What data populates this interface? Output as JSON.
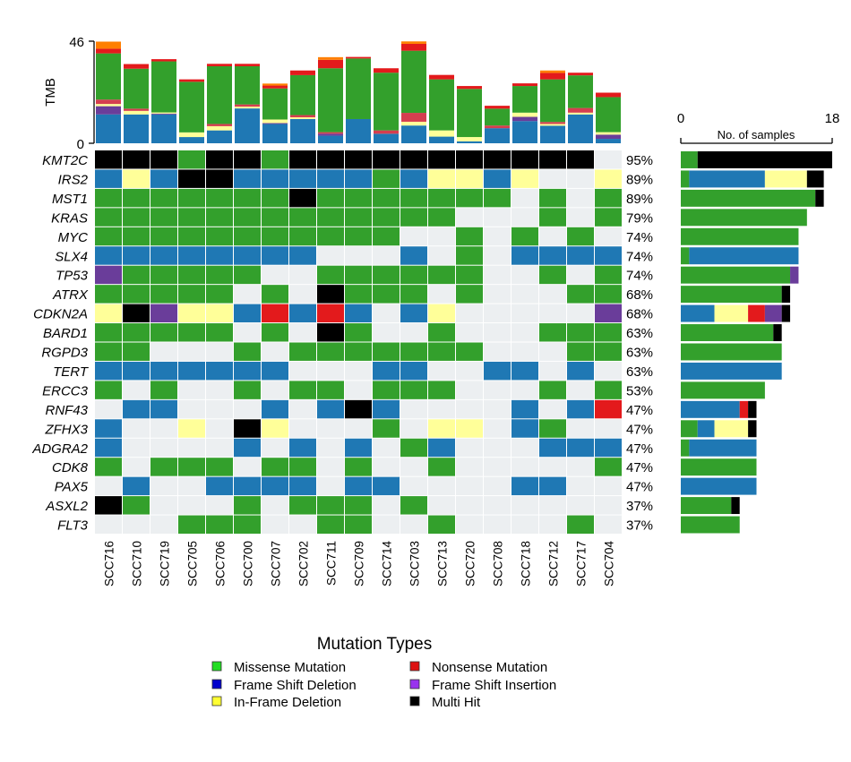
{
  "chart_data": {
    "type": "heatmap",
    "title": "",
    "samples": [
      "SCC716",
      "SCC710",
      "SCC719",
      "SCC705",
      "SCC706",
      "SCC700",
      "SCC707",
      "SCC702",
      "SCC711",
      "SCC709",
      "SCC714",
      "SCC703",
      "SCC713",
      "SCC720",
      "SCC708",
      "SCC718",
      "SCC712",
      "SCC717",
      "SCC704"
    ],
    "genes": [
      {
        "name": "KMT2C",
        "pct": "95%",
        "calls": [
          "H",
          "H",
          "H",
          "M",
          "H",
          "H",
          "M",
          "H",
          "H",
          "H",
          "H",
          "H",
          "H",
          "H",
          "H",
          "H",
          "H",
          "H",
          "."
        ]
      },
      {
        "name": "IRS2",
        "pct": "89%",
        "calls": [
          "D",
          "I",
          "D",
          "H",
          "H",
          "D",
          "D",
          "D",
          "D",
          "D",
          "M",
          "D",
          "I",
          "I",
          "D",
          "I",
          ".",
          ".",
          "I"
        ]
      },
      {
        "name": "MST1",
        "pct": "89%",
        "calls": [
          "M",
          "M",
          "M",
          "M",
          "M",
          "M",
          "M",
          "H",
          "M",
          "M",
          "M",
          "M",
          "M",
          "M",
          "M",
          ".",
          "M",
          ".",
          "M"
        ]
      },
      {
        "name": "KRAS",
        "pct": "79%",
        "calls": [
          "M",
          "M",
          "M",
          "M",
          "M",
          "M",
          "M",
          "M",
          "M",
          "M",
          "M",
          "M",
          "M",
          ".",
          ".",
          ".",
          "M",
          ".",
          "M"
        ]
      },
      {
        "name": "MYC",
        "pct": "74%",
        "calls": [
          "M",
          "M",
          "M",
          "M",
          "M",
          "M",
          "M",
          "M",
          "M",
          "M",
          "M",
          ".",
          ".",
          "M",
          ".",
          "M",
          ".",
          "M",
          "."
        ]
      },
      {
        "name": "SLX4",
        "pct": "74%",
        "calls": [
          "D",
          "D",
          "D",
          "D",
          "D",
          "D",
          "D",
          "D",
          ".",
          ".",
          ".",
          "D",
          ".",
          "M",
          ".",
          "D",
          "D",
          "D",
          "D"
        ]
      },
      {
        "name": "TP53",
        "pct": "74%",
        "calls": [
          "P",
          "M",
          "M",
          "M",
          "M",
          "M",
          ".",
          ".",
          "M",
          "M",
          "M",
          "M",
          "M",
          "M",
          ".",
          ".",
          "M",
          ".",
          "M"
        ]
      },
      {
        "name": "ATRX",
        "pct": "68%",
        "calls": [
          "M",
          "M",
          "M",
          "M",
          "M",
          ".",
          "M",
          ".",
          "H",
          "M",
          "M",
          "M",
          ".",
          "M",
          ".",
          ".",
          ".",
          "M",
          "M"
        ]
      },
      {
        "name": "CDKN2A",
        "pct": "68%",
        "calls": [
          "I",
          "H",
          "P",
          "I",
          "I",
          "D",
          "N",
          "D",
          "N",
          "D",
          ".",
          "D",
          "I",
          ".",
          ".",
          ".",
          ".",
          ".",
          "P"
        ]
      },
      {
        "name": "BARD1",
        "pct": "63%",
        "calls": [
          "M",
          "M",
          "M",
          "M",
          "M",
          ".",
          "M",
          ".",
          "H",
          "M",
          ".",
          ".",
          "M",
          ".",
          ".",
          ".",
          "M",
          "M",
          "M"
        ]
      },
      {
        "name": "RGPD3",
        "pct": "63%",
        "calls": [
          "M",
          "M",
          ".",
          ".",
          ".",
          "M",
          ".",
          "M",
          "M",
          "M",
          "M",
          "M",
          "M",
          "M",
          ".",
          ".",
          ".",
          "M",
          "M"
        ]
      },
      {
        "name": "TERT",
        "pct": "63%",
        "calls": [
          "D",
          "D",
          "D",
          "D",
          "D",
          "D",
          "D",
          ".",
          ".",
          ".",
          "D",
          "D",
          ".",
          ".",
          "D",
          "D",
          ".",
          "D",
          "."
        ]
      },
      {
        "name": "ERCC3",
        "pct": "53%",
        "calls": [
          "M",
          ".",
          "M",
          ".",
          ".",
          "M",
          ".",
          "M",
          "M",
          ".",
          "M",
          "M",
          "M",
          ".",
          ".",
          ".",
          "M",
          ".",
          "M"
        ]
      },
      {
        "name": "RNF43",
        "pct": "47%",
        "calls": [
          ".",
          "D",
          "D",
          ".",
          ".",
          ".",
          "D",
          ".",
          "D",
          "H",
          "D",
          ".",
          ".",
          ".",
          ".",
          "D",
          ".",
          "D",
          "N"
        ]
      },
      {
        "name": "ZFHX3",
        "pct": "47%",
        "calls": [
          "D",
          ".",
          ".",
          "I",
          ".",
          "H",
          "I",
          ".",
          ".",
          ".",
          "M",
          ".",
          "I",
          "I",
          ".",
          "D",
          "M",
          ".",
          "."
        ]
      },
      {
        "name": "ADGRA2",
        "pct": "47%",
        "calls": [
          "D",
          ".",
          ".",
          ".",
          ".",
          "D",
          ".",
          "D",
          ".",
          "D",
          ".",
          "M",
          "D",
          ".",
          ".",
          ".",
          "D",
          "D",
          "D"
        ]
      },
      {
        "name": "CDK8",
        "pct": "47%",
        "calls": [
          "M",
          ".",
          "M",
          "M",
          "M",
          ".",
          "M",
          "M",
          ".",
          "M",
          ".",
          ".",
          "M",
          ".",
          ".",
          ".",
          ".",
          ".",
          "M"
        ]
      },
      {
        "name": "PAX5",
        "pct": "47%",
        "calls": [
          ".",
          "D",
          ".",
          ".",
          "D",
          "D",
          "D",
          "D",
          ".",
          "D",
          "D",
          ".",
          ".",
          ".",
          ".",
          "D",
          "D",
          ".",
          "."
        ]
      },
      {
        "name": "ASXL2",
        "pct": "37%",
        "calls": [
          "H",
          "M",
          ".",
          ".",
          ".",
          "M",
          ".",
          "M",
          "M",
          "M",
          ".",
          "M",
          ".",
          ".",
          ".",
          ".",
          ".",
          ".",
          "."
        ]
      },
      {
        "name": "FLT3",
        "pct": "37%",
        "calls": [
          ".",
          ".",
          ".",
          "M",
          "M",
          "M",
          ".",
          ".",
          "M",
          "M",
          ".",
          ".",
          "M",
          ".",
          ".",
          ".",
          ".",
          "M",
          "."
        ]
      }
    ],
    "mutation_types": [
      {
        "code": "M",
        "label": "Missense Mutation",
        "color": "#33a02c",
        "legend_color": "#22dd22"
      },
      {
        "code": "D",
        "label": "Frame Shift Deletion",
        "color": "#1f78b4",
        "legend_color": "#0000cc"
      },
      {
        "code": "I",
        "label": "In-Frame Deletion",
        "color": "#ffff99",
        "legend_color": "#ffff33"
      },
      {
        "code": "N",
        "label": "Nonsense Mutation",
        "color": "#e31a1c",
        "legend_color": "#dd1111"
      },
      {
        "code": "P",
        "label": "Frame Shift Insertion",
        "color": "#6a3d9a",
        "legend_color": "#9933ee"
      },
      {
        "code": "H",
        "label": "Multi Hit",
        "color": "#000000",
        "legend_color": "#000000"
      }
    ],
    "empty_color": "#eceff1",
    "legend_title": "Mutation Types",
    "tmb": {
      "ylabel": "TMB",
      "ylim": [
        0,
        46
      ],
      "ticks": [
        "0",
        "46"
      ],
      "series": [
        {
          "color": "#1f78b4",
          "values": [
            13,
            13,
            13,
            2.8,
            5.8,
            15.7,
            8.7,
            10.9,
            3.4,
            10.9,
            4.3,
            8,
            3,
            0.9,
            6.8,
            10,
            7.9,
            13,
            2
          ]
        },
        {
          "color": "#6a3d9a",
          "values": [
            3.7,
            0,
            0.4,
            0,
            0,
            0,
            0.4,
            0,
            0.9,
            0,
            0,
            0,
            0,
            0,
            0,
            1.9,
            0,
            0,
            1.9
          ]
        },
        {
          "color": "#ffff99",
          "values": [
            1,
            1.6,
            0.5,
            2.1,
            1.9,
            0.8,
            1.6,
            0.8,
            0,
            0,
            0,
            1.7,
            2.8,
            1.9,
            0,
            1.9,
            0.8,
            0.8,
            1.1
          ]
        },
        {
          "color": "#d53e4f",
          "values": [
            2,
            1,
            0,
            0,
            1,
            1,
            0,
            1,
            0.7,
            0,
            1.5,
            4,
            0,
            0,
            1.2,
            0,
            0.9,
            2.1,
            0
          ]
        },
        {
          "color": "#33a02c",
          "values": [
            20.8,
            18,
            23,
            22.8,
            26,
            17.2,
            14,
            18,
            28.8,
            27.3,
            26,
            28,
            23,
            21.7,
            7.6,
            12,
            19.2,
            14.7,
            15.8
          ]
        },
        {
          "color": "#e31a1c",
          "values": [
            2.1,
            2.1,
            1,
            1.1,
            1.1,
            1.1,
            1.3,
            2.1,
            3.8,
            0.7,
            2,
            3.1,
            2,
            1.3,
            1.3,
            1.2,
            2.9,
            1.2,
            2
          ]
        },
        {
          "color": "#ff7f00",
          "values": [
            3.2,
            0,
            0,
            0,
            0,
            0,
            0.9,
            0,
            1.2,
            0,
            0,
            1.1,
            0,
            0,
            0,
            0,
            1.1,
            0,
            0
          ]
        }
      ]
    },
    "gene_bars": {
      "xlabel": "No. of samples",
      "xlim": [
        0,
        18
      ],
      "ticks": [
        "0",
        "18"
      ]
    }
  }
}
